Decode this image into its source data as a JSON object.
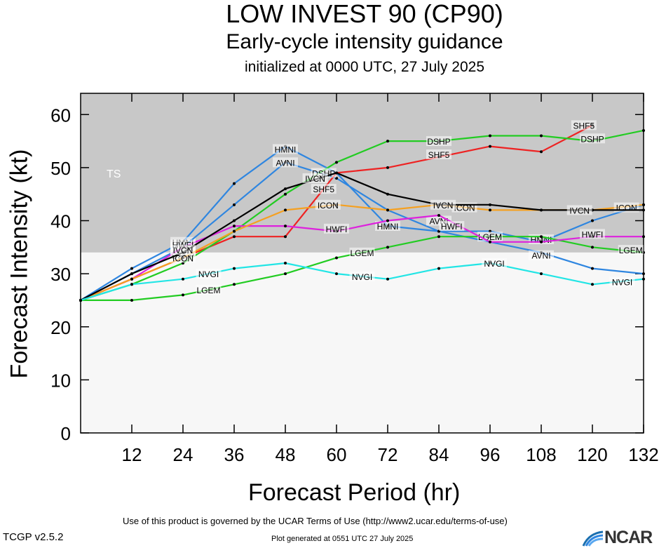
{
  "header": {
    "title": "LOW INVEST 90 (CP90)",
    "subtitle": "Early-cycle intensity guidance",
    "init": "initialized at 0000 UTC, 27 July 2025"
  },
  "footer": {
    "terms": "Use of this product is governed by the UCAR Terms of Use (http://www2.ucar.edu/terms-of-use)",
    "version": "TCGP v2.5.2",
    "generated": "Plot generated at 0551 UTC   27 July 2025",
    "logo": "NCAR"
  },
  "chart_data": {
    "type": "line",
    "xlabel": "Forecast Period (hr)",
    "ylabel": "Forecast Intensity (kt)",
    "xlim": [
      0,
      132
    ],
    "ylim": [
      0,
      64
    ],
    "xticks": [
      12,
      24,
      36,
      48,
      60,
      72,
      84,
      96,
      108,
      120,
      132
    ],
    "yticks": [
      0,
      10,
      20,
      30,
      40,
      50,
      60
    ],
    "bands": [
      {
        "label": "TS",
        "from": 34,
        "to": 64,
        "color": "#c8c8c8"
      },
      {
        "label": "",
        "from": 0,
        "to": 34,
        "color": "#f7f7f7"
      }
    ],
    "series": [
      {
        "name": "HMNI",
        "color": "#2f86e0",
        "points": [
          [
            0,
            25
          ],
          [
            12,
            31
          ],
          [
            24,
            36
          ],
          [
            36,
            47
          ],
          [
            48,
            54
          ],
          [
            60,
            49
          ],
          [
            72,
            39
          ],
          [
            84,
            38
          ],
          [
            96,
            38
          ],
          [
            108,
            36
          ],
          [
            120,
            40
          ],
          [
            132,
            43
          ]
        ],
        "labels": [
          [
            24,
            36
          ],
          [
            48,
            53.5
          ],
          [
            72,
            39
          ],
          [
            108,
            36.5
          ]
        ]
      },
      {
        "name": "AVNI",
        "color": "#2f86e0",
        "points": [
          [
            0,
            25
          ],
          [
            12,
            30
          ],
          [
            24,
            35
          ],
          [
            36,
            43
          ],
          [
            48,
            51
          ],
          [
            60,
            48
          ],
          [
            72,
            42
          ],
          [
            84,
            38
          ],
          [
            96,
            36
          ],
          [
            108,
            34
          ],
          [
            120,
            31
          ],
          [
            132,
            30
          ]
        ],
        "labels": [
          [
            24,
            35
          ],
          [
            48,
            51
          ],
          [
            84,
            40
          ],
          [
            108,
            33.5
          ]
        ]
      },
      {
        "name": "SHF5",
        "color": "#ee2222",
        "points": [
          [
            0,
            25
          ],
          [
            12,
            29
          ],
          [
            24,
            33
          ],
          [
            36,
            37
          ],
          [
            48,
            37
          ],
          [
            60,
            49
          ],
          [
            72,
            50
          ],
          [
            84,
            52
          ],
          [
            96,
            54
          ],
          [
            108,
            53
          ],
          [
            120,
            58
          ]
        ],
        "labels": [
          [
            24,
            34
          ],
          [
            57,
            46
          ],
          [
            84,
            52.5
          ],
          [
            118,
            58
          ]
        ]
      },
      {
        "name": "DSHP",
        "color": "#22cc22",
        "points": [
          [
            0,
            25
          ],
          [
            12,
            28
          ],
          [
            24,
            32
          ],
          [
            36,
            38
          ],
          [
            48,
            45
          ],
          [
            60,
            51
          ],
          [
            72,
            55
          ],
          [
            84,
            55
          ],
          [
            96,
            56
          ],
          [
            108,
            56
          ],
          [
            120,
            55
          ],
          [
            132,
            57
          ]
        ],
        "labels": [
          [
            24,
            33.5
          ],
          [
            57,
            49
          ],
          [
            84,
            55
          ],
          [
            120,
            55.5
          ]
        ]
      },
      {
        "name": "LGEM",
        "color": "#22cc22",
        "points": [
          [
            0,
            25
          ],
          [
            12,
            25
          ],
          [
            24,
            26
          ],
          [
            36,
            28
          ],
          [
            48,
            30
          ],
          [
            60,
            33
          ],
          [
            72,
            35
          ],
          [
            84,
            37
          ],
          [
            96,
            37
          ],
          [
            108,
            37
          ],
          [
            120,
            35
          ],
          [
            132,
            34
          ]
        ],
        "labels": [
          [
            30,
            27
          ],
          [
            66,
            34
          ],
          [
            96,
            37
          ],
          [
            129,
            34.5
          ]
        ]
      },
      {
        "name": "HWFI",
        "color": "#dd22dd",
        "points": [
          [
            0,
            25
          ],
          [
            12,
            29
          ],
          [
            24,
            35
          ],
          [
            36,
            39
          ],
          [
            48,
            39
          ],
          [
            60,
            38
          ],
          [
            72,
            40
          ],
          [
            84,
            41
          ],
          [
            96,
            36
          ],
          [
            108,
            36
          ],
          [
            120,
            37
          ],
          [
            132,
            37
          ]
        ],
        "labels": [
          [
            24,
            35.5
          ],
          [
            60,
            38.5
          ],
          [
            87,
            39
          ],
          [
            120,
            37.5
          ]
        ]
      },
      {
        "name": "ICON",
        "color": "#f5a020",
        "points": [
          [
            0,
            25
          ],
          [
            12,
            29
          ],
          [
            24,
            33
          ],
          [
            36,
            38
          ],
          [
            48,
            42
          ],
          [
            60,
            43
          ],
          [
            72,
            42
          ],
          [
            84,
            43
          ],
          [
            96,
            42
          ],
          [
            108,
            42
          ],
          [
            120,
            42
          ],
          [
            132,
            43
          ]
        ],
        "labels": [
          [
            24,
            33
          ],
          [
            58,
            43
          ],
          [
            90,
            42.5
          ],
          [
            128,
            42.5
          ]
        ]
      },
      {
        "name": "IVCN",
        "color": "#000000",
        "points": [
          [
            0,
            25
          ],
          [
            12,
            30
          ],
          [
            24,
            34
          ],
          [
            36,
            40
          ],
          [
            48,
            46
          ],
          [
            60,
            49
          ],
          [
            72,
            45
          ],
          [
            84,
            43
          ],
          [
            96,
            43
          ],
          [
            108,
            42
          ],
          [
            120,
            42
          ],
          [
            132,
            42
          ]
        ],
        "labels": [
          [
            24,
            34.5
          ],
          [
            55,
            48
          ],
          [
            85,
            43
          ],
          [
            117,
            42
          ]
        ]
      },
      {
        "name": "NVGI",
        "color": "#22e5e5",
        "points": [
          [
            0,
            25
          ],
          [
            12,
            28
          ],
          [
            24,
            29
          ],
          [
            36,
            31
          ],
          [
            48,
            32
          ],
          [
            60,
            30
          ],
          [
            72,
            29
          ],
          [
            84,
            31
          ],
          [
            96,
            32
          ],
          [
            108,
            30
          ],
          [
            120,
            28
          ],
          [
            132,
            29
          ]
        ],
        "labels": [
          [
            30,
            30
          ],
          [
            66,
            29.5
          ],
          [
            97,
            32
          ],
          [
            127,
            28.5
          ]
        ]
      }
    ]
  }
}
